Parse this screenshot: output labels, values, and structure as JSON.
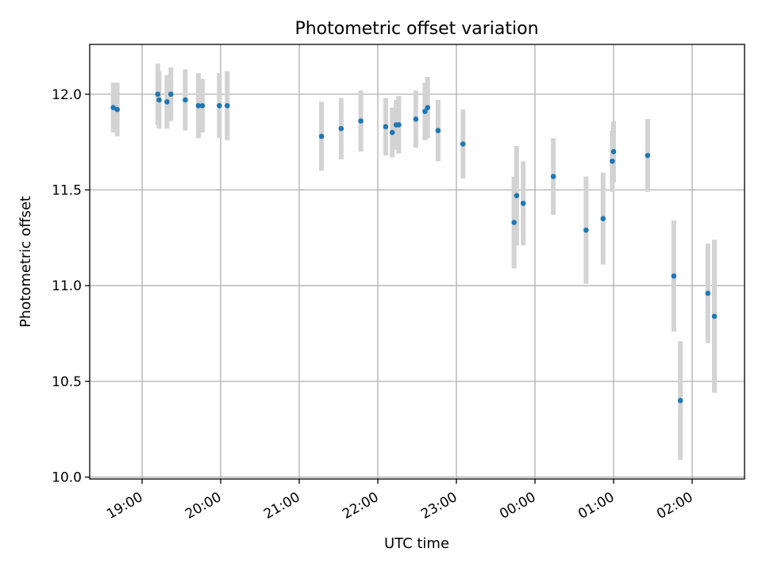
{
  "chart_data": {
    "type": "scatter",
    "title": "Photometric offset variation",
    "xlabel": "UTC time",
    "ylabel": "Photometric offset",
    "x_tick_labels": [
      "19:00",
      "20:00",
      "21:00",
      "22:00",
      "23:00",
      "00:00",
      "01:00",
      "02:00"
    ],
    "y_tick_labels": [
      "10.0",
      "10.5",
      "11.0",
      "11.5",
      "12.0"
    ],
    "y_ticks": [
      10.0,
      10.5,
      11.0,
      11.5,
      12.0
    ],
    "x_ticks": [
      "19:00",
      "20:00",
      "21:00",
      "22:00",
      "23:00",
      "24:00",
      "25:00",
      "26:00"
    ],
    "xlim": [
      "18:20",
      "26:40"
    ],
    "ylim": [
      9.99,
      12.26
    ],
    "grid": true,
    "marker_color": "#1f77b4",
    "errorbar_color": "#d3d3d3",
    "points": [
      {
        "x": "18:38",
        "y": 11.93,
        "err": 0.13
      },
      {
        "x": "18:41",
        "y": 11.92,
        "err": 0.14
      },
      {
        "x": "19:12",
        "y": 12.0,
        "err": 0.16
      },
      {
        "x": "19:13",
        "y": 11.97,
        "err": 0.15
      },
      {
        "x": "19:19",
        "y": 11.96,
        "err": 0.14
      },
      {
        "x": "19:22",
        "y": 12.0,
        "err": 0.14
      },
      {
        "x": "19:33",
        "y": 11.97,
        "err": 0.16
      },
      {
        "x": "19:43",
        "y": 11.94,
        "err": 0.17
      },
      {
        "x": "19:46",
        "y": 11.94,
        "err": 0.14
      },
      {
        "x": "19:59",
        "y": 11.94,
        "err": 0.17
      },
      {
        "x": "20:05",
        "y": 11.94,
        "err": 0.18
      },
      {
        "x": "21:17",
        "y": 11.78,
        "err": 0.18
      },
      {
        "x": "21:32",
        "y": 11.82,
        "err": 0.16
      },
      {
        "x": "21:47",
        "y": 11.86,
        "err": 0.16
      },
      {
        "x": "22:06",
        "y": 11.83,
        "err": 0.15
      },
      {
        "x": "22:11",
        "y": 11.8,
        "err": 0.13
      },
      {
        "x": "22:14",
        "y": 11.84,
        "err": 0.13
      },
      {
        "x": "22:16",
        "y": 11.84,
        "err": 0.15
      },
      {
        "x": "22:29",
        "y": 11.87,
        "err": 0.15
      },
      {
        "x": "22:36",
        "y": 11.91,
        "err": 0.15
      },
      {
        "x": "22:38",
        "y": 11.93,
        "err": 0.16
      },
      {
        "x": "22:46",
        "y": 11.81,
        "err": 0.16
      },
      {
        "x": "23:05",
        "y": 11.74,
        "err": 0.18
      },
      {
        "x": "23:44",
        "y": 11.33,
        "err": 0.24
      },
      {
        "x": "23:46",
        "y": 11.47,
        "err": 0.26
      },
      {
        "x": "23:51",
        "y": 11.43,
        "err": 0.22
      },
      {
        "x": "24:14",
        "y": 11.57,
        "err": 0.2
      },
      {
        "x": "24:39",
        "y": 11.29,
        "err": 0.28
      },
      {
        "x": "24:52",
        "y": 11.35,
        "err": 0.24
      },
      {
        "x": "24:59",
        "y": 11.65,
        "err": 0.16
      },
      {
        "x": "25:00",
        "y": 11.7,
        "err": 0.16
      },
      {
        "x": "25:26",
        "y": 11.68,
        "err": 0.19
      },
      {
        "x": "25:46",
        "y": 11.05,
        "err": 0.29
      },
      {
        "x": "25:51",
        "y": 10.4,
        "err": 0.31
      },
      {
        "x": "26:12",
        "y": 10.96,
        "err": 0.26
      },
      {
        "x": "26:17",
        "y": 10.84,
        "err": 0.4
      }
    ]
  }
}
